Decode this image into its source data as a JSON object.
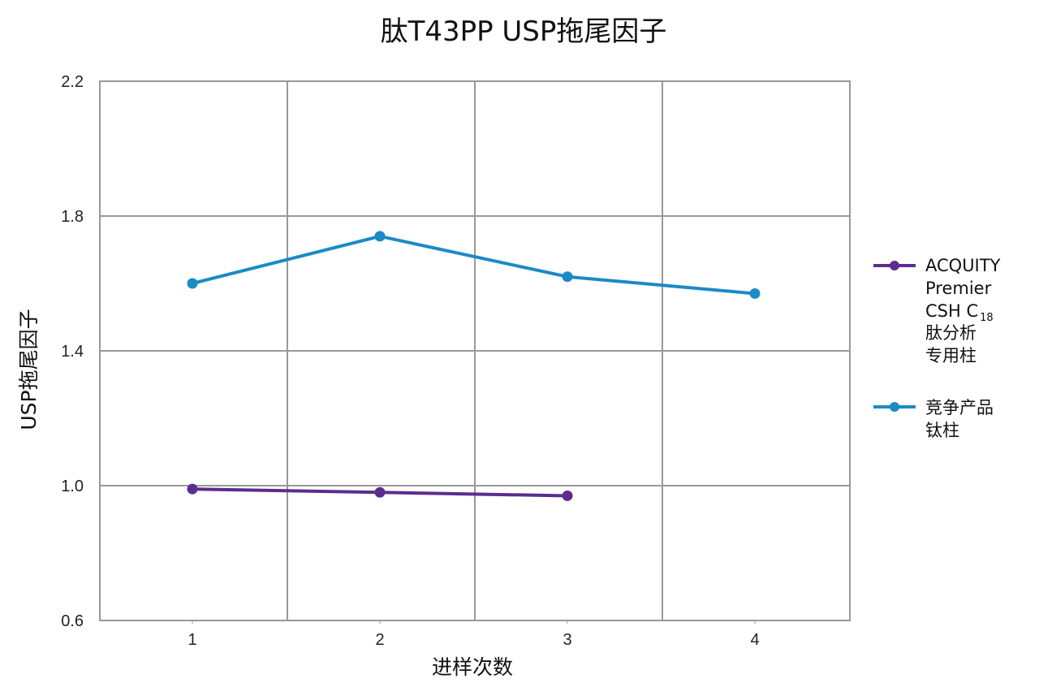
{
  "chart_data": {
    "type": "line",
    "title": "肽T43PP USP拖尾因子",
    "xlabel": "进样次数",
    "ylabel": "USP拖尾因子",
    "x": [
      1,
      2,
      3,
      4
    ],
    "x_ticks": [
      "1",
      "2",
      "3",
      "4"
    ],
    "ylim": [
      0.6,
      2.2
    ],
    "y_ticks": [
      "0.6",
      "1.0",
      "1.4",
      "1.8",
      "2.2"
    ],
    "grid": true,
    "legend_position": "right",
    "series": [
      {
        "name": "ACQUITY Premier CSH C18 肽分析专用柱",
        "legend_lines": [
          "ACQUITY",
          "Premier",
          "CSH C",
          "18",
          "肽分析",
          "专用柱"
        ],
        "color": "#5b2d8e",
        "x": [
          1,
          2,
          3
        ],
        "values": [
          0.99,
          0.98,
          0.97
        ]
      },
      {
        "name": "竞争产品钛柱",
        "legend_lines": [
          "竞争产品",
          "钛柱"
        ],
        "color": "#1a8bc4",
        "x": [
          1,
          2,
          3,
          4
        ],
        "values": [
          1.6,
          1.74,
          1.62,
          1.57
        ]
      }
    ]
  }
}
